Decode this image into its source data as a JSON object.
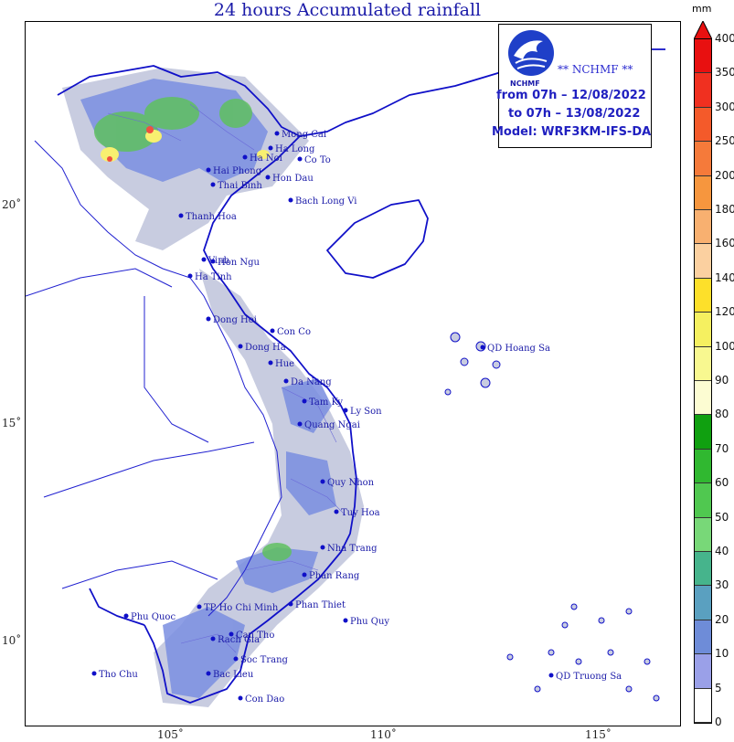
{
  "title": "24 hours Accumulated rainfall",
  "legend": {
    "brand": "** NCHMF **",
    "logo_caption": "NCHMF",
    "from_line": "from 07h – 12/08/2022",
    "to_line": "to 07h – 13/08/2022",
    "model_line": "Model: WRF3KM-IFS-DA"
  },
  "axes": {
    "lon_ticks": [
      "105˚",
      "110˚",
      "115˚"
    ],
    "lat_ticks": [
      "20˚",
      "15˚",
      "10˚"
    ]
  },
  "colorbar": {
    "unit": "mm",
    "levels": [
      "400",
      "350",
      "300",
      "250",
      "200",
      "180",
      "160",
      "140",
      "120",
      "100",
      "90",
      "80",
      "70",
      "60",
      "50",
      "40",
      "30",
      "20",
      "10",
      "5",
      "0"
    ],
    "colors": [
      "#e81010",
      "#f03020",
      "#f45a2a",
      "#f57a3a",
      "#f6963e",
      "#f8b070",
      "#fbd0a0",
      "#fde02a",
      "#f5f060",
      "#f8f890",
      "#fcfcd2",
      "#10a010",
      "#30b830",
      "#50c850",
      "#78d878",
      "#46b48c",
      "#5aa0c0",
      "#6e8cd8",
      "#9aa0e8",
      "#c8c8f4",
      "#ffffff"
    ]
  },
  "places": [
    {
      "name": "Mong Cai"
    },
    {
      "name": "Ha Long"
    },
    {
      "name": "Co To"
    },
    {
      "name": "Ha Noi"
    },
    {
      "name": "Hai Phong"
    },
    {
      "name": "Hon Dau"
    },
    {
      "name": "Thai Binh"
    },
    {
      "name": "Bach Long Vi"
    },
    {
      "name": "Thanh Hoa"
    },
    {
      "name": "Vinh"
    },
    {
      "name": "Hon Ngu"
    },
    {
      "name": "Ha Tinh"
    },
    {
      "name": "Dong Hoi"
    },
    {
      "name": "Con Co"
    },
    {
      "name": "Dong Ha"
    },
    {
      "name": "Hue"
    },
    {
      "name": "Da Nang"
    },
    {
      "name": "Tam Ky"
    },
    {
      "name": "Ly Son"
    },
    {
      "name": "Quang Ngai"
    },
    {
      "name": "QD Hoang Sa"
    },
    {
      "name": "Quy Nhon"
    },
    {
      "name": "Tuy Hoa"
    },
    {
      "name": "Nha Trang"
    },
    {
      "name": "Phan Rang"
    },
    {
      "name": "Phan Thiet"
    },
    {
      "name": "TP Ho Chi Minh"
    },
    {
      "name": "Phu Quy"
    },
    {
      "name": "Phu Quoc"
    },
    {
      "name": "Rach Gia"
    },
    {
      "name": "Can Tho"
    },
    {
      "name": "Soc Trang"
    },
    {
      "name": "Bac Lieu"
    },
    {
      "name": "Tho Chu"
    },
    {
      "name": "Con Dao"
    },
    {
      "name": "QD Truong Sa"
    }
  ]
}
